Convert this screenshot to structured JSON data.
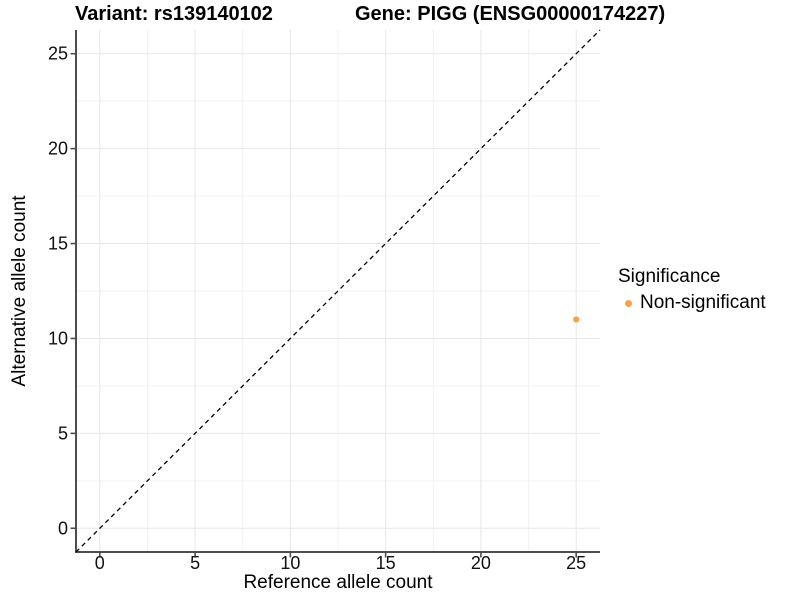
{
  "title": {
    "variant": "Variant: rs139140102",
    "gene": "Gene: PIGG (ENSG00000174227)"
  },
  "axes": {
    "x_label": "Reference allele count",
    "y_label": "Alternative allele count"
  },
  "legend": {
    "title": "Significance",
    "items": [
      {
        "label": "Non-significant",
        "color": "#F9A242",
        "marker": "dot-icon"
      }
    ]
  },
  "colors": {
    "point": "#F9A242",
    "grid_major": "#E7E7E7",
    "grid_minor": "#F2F2F2",
    "axis_line": "#4D4D4D",
    "tick_label": "#111111",
    "reference_line": "#000000",
    "background": "#FFFFFF"
  },
  "chart_data": {
    "type": "scatter",
    "title": "Variant: rs139140102    Gene: PIGG (ENSG00000174227)",
    "xlabel": "Reference allele count",
    "ylabel": "Alternative allele count",
    "xlim": [
      -1.25,
      26.25
    ],
    "ylim": [
      -1.25,
      26.25
    ],
    "x_ticks": [
      0,
      5,
      10,
      15,
      20,
      25
    ],
    "y_ticks": [
      0,
      5,
      10,
      15,
      20,
      25
    ],
    "minor_ticks": [
      2.5,
      7.5,
      12.5,
      17.5,
      22.5
    ],
    "grid": true,
    "legend_position": "right",
    "legend_title": "Significance",
    "series": [
      {
        "name": "Non-significant",
        "color": "#F9A242",
        "points": [
          {
            "x": 25,
            "y": 11
          }
        ]
      }
    ],
    "reference_line": {
      "equation": "y = x",
      "style": "dashed",
      "color": "#000000"
    }
  }
}
